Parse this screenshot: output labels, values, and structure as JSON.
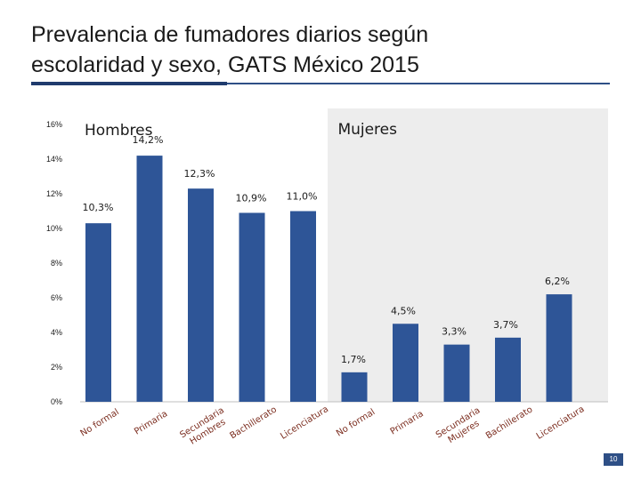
{
  "title": {
    "line1": "Prevalencia de fumadores diarios según",
    "line2": "escolaridad y sexo, GATS México 2015"
  },
  "page_number": "10",
  "colors": {
    "bar": "#2e5597",
    "mujeres_panel": "#ededed",
    "accent_rule": "#2e4f86",
    "text": "#1a1a1a"
  },
  "chart_data": {
    "type": "bar",
    "title": "Prevalencia de fumadores diarios según escolaridad y sexo, GATS México 2015",
    "xlabel": "",
    "ylabel": "",
    "ylim": [
      0,
      16
    ],
    "yticks": [
      0,
      2,
      4,
      6,
      8,
      10,
      12,
      14,
      16
    ],
    "ytick_labels": [
      "0%",
      "2%",
      "4%",
      "6%",
      "8%",
      "10%",
      "12%",
      "14%",
      "16%"
    ],
    "grid": false,
    "panels": [
      {
        "name": "Hombres",
        "categories": [
          "No formal",
          "Primaria",
          "Secundaria Hombres",
          "Bachillerato",
          "Licenciatura"
        ],
        "category_lines": [
          [
            "No formal"
          ],
          [
            "Primaria"
          ],
          [
            "Secundaria",
            "Hombres"
          ],
          [
            "Bachillerato"
          ],
          [
            "Licenciatura"
          ]
        ],
        "values": [
          10.3,
          14.2,
          12.3,
          10.9,
          11.0
        ],
        "labels": [
          "10,3%",
          "14,2%",
          "12,3%",
          "10,9%",
          "11,0%"
        ]
      },
      {
        "name": "Mujeres",
        "categories": [
          "No formal",
          "Primaria",
          "Secundaria Mujeres",
          "Bachillerato",
          "Licenciatura"
        ],
        "category_lines": [
          [
            "No formal"
          ],
          [
            "Primaria"
          ],
          [
            "Secundaria",
            "Mujeres"
          ],
          [
            "Bachillerato"
          ],
          [
            "Licenciatura"
          ]
        ],
        "values": [
          1.7,
          4.5,
          3.3,
          3.7,
          6.2
        ],
        "labels": [
          "1,7%",
          "4,5%",
          "3,3%",
          "3,7%",
          "6,2%"
        ]
      }
    ]
  }
}
